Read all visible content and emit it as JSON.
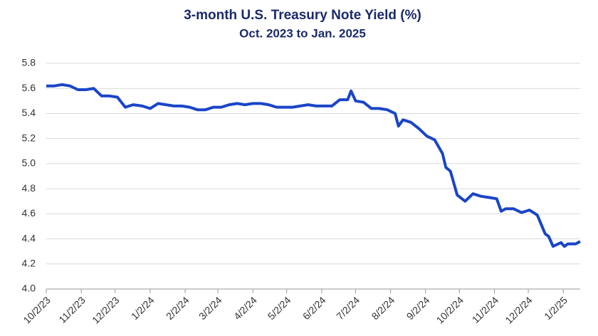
{
  "chart_data": {
    "type": "line",
    "title": "3-month U.S. Treasury Note Yield (%)",
    "subtitle": "Oct. 2023 to Jan. 2025",
    "x": [
      "10/2/23",
      "10/9/23",
      "10/16/23",
      "10/23/23",
      "10/30/23",
      "11/6/23",
      "11/13/23",
      "11/20/23",
      "11/27/23",
      "12/4/23",
      "12/11/23",
      "12/18/23",
      "12/26/23",
      "1/2/24",
      "1/9/24",
      "1/16/24",
      "1/23/24",
      "1/30/24",
      "2/6/24",
      "2/13/24",
      "2/20/24",
      "2/27/24",
      "3/5/24",
      "3/12/24",
      "3/19/24",
      "3/26/24",
      "4/2/24",
      "4/9/24",
      "4/16/24",
      "4/23/24",
      "4/30/24",
      "5/7/24",
      "5/14/24",
      "5/21/24",
      "5/28/24",
      "6/4/24",
      "6/11/24",
      "6/18/24",
      "6/25/24",
      "6/28/24",
      "7/2/24",
      "7/9/24",
      "7/16/24",
      "7/23/24",
      "7/30/24",
      "8/6/24",
      "8/9/24",
      "8/13/24",
      "8/20/24",
      "8/27/24",
      "9/3/24",
      "9/10/24",
      "9/17/24",
      "9/20/24",
      "9/24/24",
      "9/30/24",
      "10/7/24",
      "10/14/24",
      "10/21/24",
      "10/28/24",
      "11/4/24",
      "11/8/24",
      "11/12/24",
      "11/19/24",
      "11/26/24",
      "12/3/24",
      "12/10/24",
      "12/17/24",
      "12/20/24",
      "12/24/24",
      "12/31/24",
      "1/3/25",
      "1/6/25",
      "1/13/25",
      "1/17/25"
    ],
    "series": [
      {
        "color": "#1a45c8",
        "values": [
          5.62,
          5.62,
          5.63,
          5.62,
          5.59,
          5.59,
          5.6,
          5.54,
          5.54,
          5.53,
          5.45,
          5.47,
          5.46,
          5.44,
          5.48,
          5.47,
          5.46,
          5.46,
          5.45,
          5.43,
          5.43,
          5.45,
          5.45,
          5.47,
          5.48,
          5.47,
          5.48,
          5.48,
          5.47,
          5.45,
          5.45,
          5.45,
          5.46,
          5.47,
          5.46,
          5.46,
          5.46,
          5.51,
          5.51,
          5.58,
          5.5,
          5.49,
          5.44,
          5.44,
          5.43,
          5.4,
          5.3,
          5.35,
          5.33,
          5.28,
          5.22,
          5.19,
          5.08,
          4.97,
          4.94,
          4.75,
          4.7,
          4.76,
          4.74,
          4.73,
          4.72,
          4.62,
          4.64,
          4.64,
          4.61,
          4.63,
          4.59,
          4.44,
          4.42,
          4.34,
          4.37,
          4.34,
          4.36,
          4.36,
          4.38
        ]
      }
    ],
    "xlim": [
      "10/2/23",
      "1/17/25"
    ],
    "xticks": [
      "10/2/23",
      "11/2/23",
      "12/2/23",
      "1/2/24",
      "2/2/24",
      "3/2/24",
      "4/2/24",
      "5/2/24",
      "6/2/24",
      "7/2/24",
      "8/2/24",
      "9/2/24",
      "10/2/24",
      "11/2/24",
      "12/2/24",
      "1/2/25"
    ],
    "ylim": [
      4.0,
      5.8
    ],
    "yticks": [
      {
        "value": 4.0,
        "label": "4.0"
      },
      4.2,
      4.4,
      4.6,
      4.8,
      {
        "value": 5.0,
        "label": "5.0"
      },
      5.2,
      5.4,
      5.6,
      5.8
    ],
    "grid": true
  }
}
